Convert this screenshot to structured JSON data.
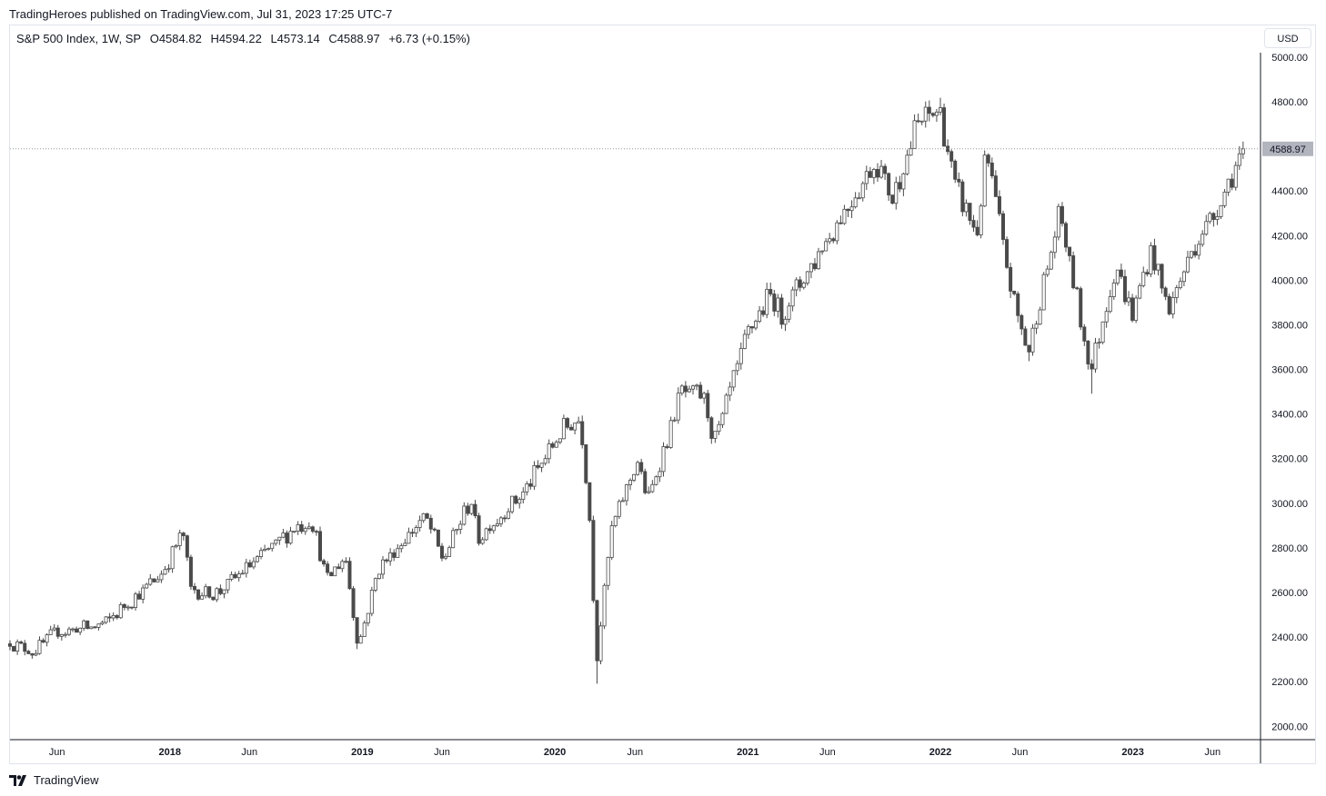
{
  "header": {
    "published_text": "TradingHeroes published on TradingView.com, Jul 31, 2023 17:25 UTC-7"
  },
  "legend": {
    "symbol": "S&P 500 Index, 1W, SP",
    "open": "O4584.82",
    "high": "H4594.22",
    "low": "L4573.14",
    "close": "C4588.97",
    "change": "+6.73 (+0.15%)"
  },
  "currency_label": "USD",
  "footer": {
    "logo_text": "TradingView"
  },
  "colors": {
    "candle": "#4a4a4a",
    "axis": "#131722",
    "grid": "#e0e3eb",
    "price_label_bg": "#b2b5be"
  },
  "chart_data": {
    "type": "candlestick",
    "title": "S&P 500 Index, 1W, SP",
    "last_price": 4588.97,
    "last_price_label": "4588.97",
    "ylim": [
      1940,
      5020
    ],
    "xlim": [
      "2017-03-04",
      "2023-08-31"
    ],
    "grid": false,
    "y_ticks": [
      "5000.00",
      "4800.00",
      "4600.00",
      "4400.00",
      "4200.00",
      "4000.00",
      "3800.00",
      "3600.00",
      "3400.00",
      "3200.00",
      "3000.00",
      "2800.00",
      "2600.00",
      "2400.00",
      "2200.00",
      "2000.00"
    ],
    "x_ticks": [
      {
        "label": "Jun",
        "date": "2017-06-01",
        "bold": false
      },
      {
        "label": "2018",
        "date": "2018-01-01",
        "bold": true
      },
      {
        "label": "Jun",
        "date": "2018-06-01",
        "bold": false
      },
      {
        "label": "2019",
        "date": "2019-01-01",
        "bold": true
      },
      {
        "label": "Jun",
        "date": "2019-06-01",
        "bold": false
      },
      {
        "label": "2020",
        "date": "2020-01-01",
        "bold": true
      },
      {
        "label": "Jun",
        "date": "2020-06-01",
        "bold": false
      },
      {
        "label": "2021",
        "date": "2021-01-01",
        "bold": true
      },
      {
        "label": "Jun",
        "date": "2021-06-01",
        "bold": false
      },
      {
        "label": "2022",
        "date": "2022-01-01",
        "bold": true
      },
      {
        "label": "Jun",
        "date": "2022-06-01",
        "bold": false
      },
      {
        "label": "2023",
        "date": "2023-01-01",
        "bold": true
      },
      {
        "label": "Jun",
        "date": "2023-06-01",
        "bold": false
      }
    ],
    "close_path": [
      [
        "2017-03-04",
        2370
      ],
      [
        "2017-04-15",
        2335
      ],
      [
        "2017-06-01",
        2420
      ],
      [
        "2017-08-10",
        2445
      ],
      [
        "2017-09-01",
        2465
      ],
      [
        "2017-12-15",
        2680
      ],
      [
        "2018-01-26",
        2870
      ],
      [
        "2018-02-09",
        2620
      ],
      [
        "2018-03-23",
        2590
      ],
      [
        "2018-04-06",
        2605
      ],
      [
        "2018-06-01",
        2720
      ],
      [
        "2018-08-31",
        2900
      ],
      [
        "2018-09-28",
        2915
      ],
      [
        "2018-10-26",
        2660
      ],
      [
        "2018-11-30",
        2760
      ],
      [
        "2018-12-24",
        2355
      ],
      [
        "2019-01-31",
        2705
      ],
      [
        "2019-04-30",
        2945
      ],
      [
        "2019-06-03",
        2745
      ],
      [
        "2019-07-26",
        3020
      ],
      [
        "2019-08-09",
        2845
      ],
      [
        "2019-10-31",
        3040
      ],
      [
        "2020-01-17",
        3330
      ],
      [
        "2020-02-19",
        3380
      ],
      [
        "2020-03-06",
        2975
      ],
      [
        "2020-03-20",
        2300
      ],
      [
        "2020-04-17",
        2875
      ],
      [
        "2020-06-05",
        3195
      ],
      [
        "2020-06-26",
        3010
      ],
      [
        "2020-08-28",
        3500
      ],
      [
        "2020-10-09",
        3480
      ],
      [
        "2020-10-30",
        3270
      ],
      [
        "2020-12-31",
        3756
      ],
      [
        "2021-02-12",
        3935
      ],
      [
        "2021-03-05",
        3840
      ],
      [
        "2021-06-25",
        4280
      ],
      [
        "2021-09-03",
        4535
      ],
      [
        "2021-10-01",
        4357
      ],
      [
        "2021-11-19",
        4700
      ],
      [
        "2021-12-31",
        4766
      ],
      [
        "2022-01-28",
        4432
      ],
      [
        "2022-03-11",
        4204
      ],
      [
        "2022-03-29",
        4575
      ],
      [
        "2022-05-20",
        3900
      ],
      [
        "2022-06-17",
        3675
      ],
      [
        "2022-08-16",
        4305
      ],
      [
        "2022-10-13",
        3585
      ],
      [
        "2022-11-30",
        4080
      ],
      [
        "2022-12-30",
        3839
      ],
      [
        "2023-02-03",
        4136
      ],
      [
        "2023-03-10",
        3861
      ],
      [
        "2023-04-28",
        4169
      ],
      [
        "2023-06-02",
        4282
      ],
      [
        "2023-07-28",
        4582
      ],
      [
        "2023-07-31",
        4589
      ]
    ],
    "extremes": [
      {
        "date": "2018-01-26",
        "value": 2872
      },
      {
        "date": "2018-12-24",
        "value": 2346
      },
      {
        "date": "2020-02-19",
        "value": 3393
      },
      {
        "date": "2020-03-23",
        "value": 2191
      },
      {
        "date": "2022-01-04",
        "value": 4818
      },
      {
        "date": "2022-06-17",
        "value": 3637
      },
      {
        "date": "2022-10-13",
        "value": 3491
      }
    ]
  }
}
